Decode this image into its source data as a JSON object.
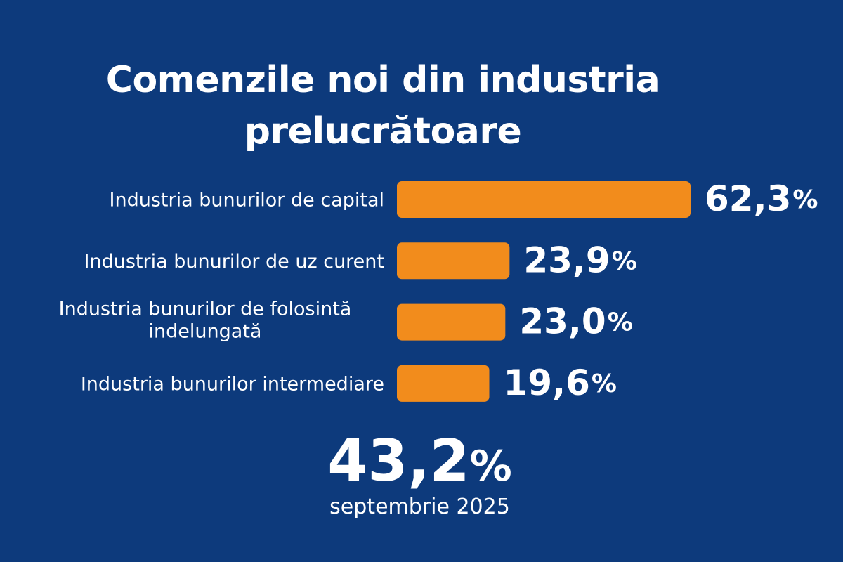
{
  "colors": {
    "background": "#0d3a7c",
    "bar": "#f28c1c",
    "text": "#ffffff"
  },
  "chart_data": {
    "type": "bar",
    "orientation": "horizontal",
    "title": "Comenzile noi din industria prelucrătoare",
    "title_lines": [
      "Comenzile noi din industria",
      "prelucrătoare"
    ],
    "categories": [
      "Industria bunurilor de capital",
      "Industria bunurilor de uz curent",
      "Industria bunurilor de folosință îndelungată",
      "Industria bunurilor intermediare"
    ],
    "category_lines": [
      [
        "Industria bunurilor de capital"
      ],
      [
        "Industria bunurilor de uz curent"
      ],
      [
        "Industria bunurilor de folosintă",
        "indelungată"
      ],
      [
        "Industria bunurilor intermediare"
      ]
    ],
    "values": [
      62.3,
      23.9,
      23.0,
      19.6
    ],
    "value_labels": [
      "62,3",
      "23,9",
      "23,0",
      "19,6"
    ],
    "unit": "%",
    "xlim": [
      0,
      62.3
    ],
    "grid": false,
    "legend": "none",
    "summary": {
      "value": "43,2",
      "unit": "%",
      "label": "septembrie 2025"
    }
  }
}
